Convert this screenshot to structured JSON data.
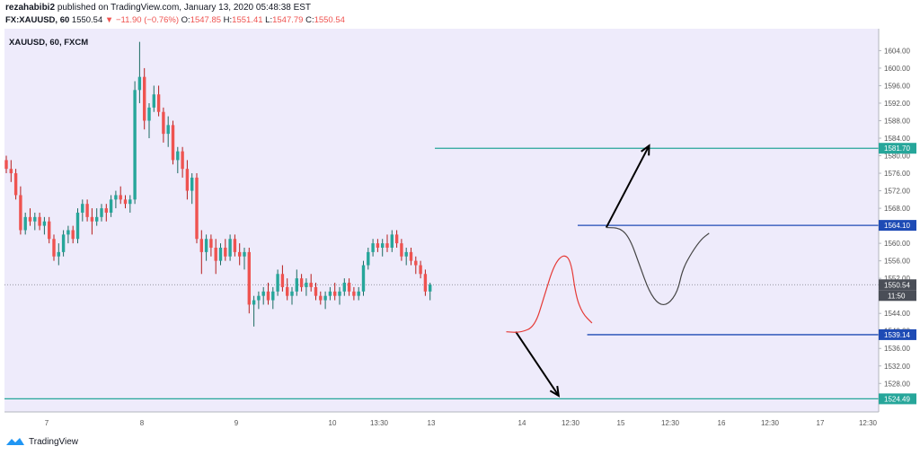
{
  "header": {
    "author": "rezahabibi2",
    "published": "published on TradingView.com, January 13, 2020 05:48:38 EST",
    "symbol": "FX:XAUUSD, 60",
    "last": "1550.54",
    "change": "−11.90 (−0.76%)",
    "o_label": "O:",
    "o_value": "1547.85",
    "h_label": "H:",
    "h_value": "1551.41",
    "l_label": "L:",
    "l_value": "1547.79",
    "c_label": "C:",
    "c_value": "1550.54"
  },
  "footer": {
    "brand": "TradingView"
  },
  "colors": {
    "background": "#eeebfb",
    "bull": "#26a69a",
    "bear": "#ef5350",
    "dark_bull": "#1c6b62",
    "dark_bear": "#b71c1c",
    "teal_line": "#26a69a",
    "blue_line": "#1e4bb5",
    "price_badge": "#4a4e57",
    "sketch_red": "#e53935",
    "sketch_gray": "#444444"
  },
  "chart_data": {
    "type": "candlestick",
    "title": "XAUUSD, 60, FXCM",
    "x_ticks": [
      "7",
      "8",
      "9",
      "10",
      "13:30",
      "13",
      "14",
      "12:30",
      "15",
      "12:30",
      "16",
      "12:30",
      "17",
      "12:30"
    ],
    "y_ticks": [
      "1604.00",
      "1600.00",
      "1596.00",
      "1592.00",
      "1588.00",
      "1584.00",
      "1580.00",
      "1576.00",
      "1572.00",
      "1568.00",
      "1564.00",
      "1560.00",
      "1556.00",
      "1552.00",
      "1548.00",
      "1544.00",
      "1540.00",
      "1536.00",
      "1532.00",
      "1528.00",
      "1524.00"
    ],
    "ylim": [
      1521.5,
      1609
    ],
    "horizontal_levels": [
      {
        "label": "1581.70",
        "value": 1581.7,
        "color": "teal",
        "start_bar": 90
      },
      {
        "label": "1564.10",
        "value": 1564.1,
        "color": "blue",
        "start_bar": 120
      },
      {
        "label": "1539.14",
        "value": 1539.14,
        "color": "blue",
        "start_bar": 122
      },
      {
        "label": "1524.49",
        "value": 1524.49,
        "color": "teal",
        "start_bar": 0
      }
    ],
    "last_price": {
      "label": "1550.54",
      "value": 1550.54
    },
    "countdown": "11:50",
    "candles": [
      [
        1579,
        1580,
        1576,
        1577
      ],
      [
        1577,
        1579,
        1574,
        1576
      ],
      [
        1576,
        1577,
        1570,
        1571
      ],
      [
        1571,
        1573,
        1562,
        1563
      ],
      [
        1563,
        1567,
        1562,
        1566
      ],
      [
        1566,
        1568,
        1564,
        1565
      ],
      [
        1565,
        1567,
        1563,
        1566
      ],
      [
        1566,
        1567,
        1563,
        1564
      ],
      [
        1564,
        1566,
        1562,
        1565
      ],
      [
        1565,
        1566,
        1560,
        1561
      ],
      [
        1561,
        1562,
        1556,
        1557
      ],
      [
        1557,
        1560,
        1555,
        1558
      ],
      [
        1558,
        1563,
        1557,
        1562
      ],
      [
        1562,
        1564,
        1560,
        1563
      ],
      [
        1563,
        1564,
        1560,
        1561
      ],
      [
        1561,
        1568,
        1560,
        1567
      ],
      [
        1567,
        1570,
        1565,
        1569
      ],
      [
        1569,
        1570,
        1565,
        1566
      ],
      [
        1566,
        1568,
        1562,
        1565
      ],
      [
        1565,
        1568,
        1564,
        1566
      ],
      [
        1566,
        1569,
        1565,
        1568
      ],
      [
        1568,
        1569,
        1565,
        1567
      ],
      [
        1567,
        1571,
        1566,
        1570
      ],
      [
        1570,
        1572,
        1568,
        1571
      ],
      [
        1571,
        1573,
        1569,
        1570
      ],
      [
        1570,
        1571,
        1568,
        1569
      ],
      [
        1569,
        1571,
        1567,
        1570
      ],
      [
        1570,
        1597,
        1569,
        1595
      ],
      [
        1595,
        1606,
        1592,
        1598
      ],
      [
        1598,
        1600,
        1586,
        1588
      ],
      [
        1588,
        1592,
        1584,
        1591
      ],
      [
        1591,
        1596,
        1590,
        1594
      ],
      [
        1594,
        1596,
        1589,
        1590
      ],
      [
        1590,
        1591,
        1583,
        1585
      ],
      [
        1585,
        1589,
        1582,
        1587
      ],
      [
        1587,
        1588,
        1578,
        1579
      ],
      [
        1579,
        1582,
        1576,
        1581
      ],
      [
        1581,
        1582,
        1575,
        1577
      ],
      [
        1577,
        1579,
        1570,
        1572
      ],
      [
        1572,
        1576,
        1569,
        1575
      ],
      [
        1575,
        1576,
        1560,
        1561
      ],
      [
        1561,
        1563,
        1553,
        1558
      ],
      [
        1558,
        1562,
        1556,
        1561
      ],
      [
        1561,
        1562,
        1557,
        1559
      ],
      [
        1559,
        1561,
        1553,
        1556
      ],
      [
        1556,
        1560,
        1555,
        1559
      ],
      [
        1559,
        1561,
        1556,
        1557
      ],
      [
        1557,
        1562,
        1556,
        1561
      ],
      [
        1561,
        1562,
        1557,
        1558
      ],
      [
        1558,
        1560,
        1555,
        1557
      ],
      [
        1557,
        1559,
        1554,
        1558
      ],
      [
        1558,
        1559,
        1544,
        1546
      ],
      [
        1546,
        1548,
        1541,
        1547
      ],
      [
        1547,
        1549,
        1545,
        1548
      ],
      [
        1548,
        1550,
        1546,
        1549
      ],
      [
        1549,
        1551,
        1546,
        1547
      ],
      [
        1547,
        1550,
        1545,
        1549
      ],
      [
        1549,
        1554,
        1548,
        1553
      ],
      [
        1553,
        1555,
        1549,
        1550
      ],
      [
        1550,
        1552,
        1547,
        1548
      ],
      [
        1548,
        1550,
        1546,
        1549
      ],
      [
        1549,
        1554,
        1548,
        1552
      ],
      [
        1552,
        1553,
        1549,
        1550
      ],
      [
        1550,
        1552,
        1548,
        1551
      ],
      [
        1551,
        1553,
        1549,
        1550
      ],
      [
        1550,
        1551,
        1547,
        1548
      ],
      [
        1548,
        1549,
        1546,
        1547
      ],
      [
        1547,
        1549,
        1545,
        1548
      ],
      [
        1548,
        1550,
        1547,
        1549
      ],
      [
        1549,
        1551,
        1547,
        1548
      ],
      [
        1548,
        1550,
        1546,
        1549
      ],
      [
        1549,
        1552,
        1548,
        1551
      ],
      [
        1551,
        1552,
        1548,
        1549
      ],
      [
        1549,
        1550,
        1547,
        1548
      ],
      [
        1548,
        1550,
        1547,
        1549
      ],
      [
        1549,
        1556,
        1548,
        1555
      ],
      [
        1555,
        1559,
        1554,
        1558
      ],
      [
        1558,
        1561,
        1557,
        1560
      ],
      [
        1560,
        1561,
        1558,
        1559
      ],
      [
        1559,
        1561,
        1557,
        1560
      ],
      [
        1560,
        1562,
        1558,
        1559
      ],
      [
        1559,
        1563,
        1558,
        1562
      ],
      [
        1562,
        1563,
        1559,
        1560
      ],
      [
        1560,
        1561,
        1556,
        1557
      ],
      [
        1557,
        1559,
        1555,
        1558
      ],
      [
        1558,
        1559,
        1555,
        1556
      ],
      [
        1556,
        1557,
        1553,
        1555
      ],
      [
        1555,
        1556,
        1552,
        1553
      ],
      [
        1553,
        1554,
        1548,
        1549
      ],
      [
        1549,
        1551,
        1547,
        1550.54
      ]
    ],
    "annotations": [
      {
        "type": "arrow",
        "from": [
          126,
          1563.6
        ],
        "to": [
          135,
          1582.3
        ]
      },
      {
        "type": "arrow",
        "from": [
          107,
          1539.8
        ],
        "to": [
          116,
          1525.2
        ]
      },
      {
        "type": "path",
        "color": "red",
        "points": [
          [
            105,
            1539.8
          ],
          [
            108,
            1539.6
          ],
          [
            111,
            1541
          ],
          [
            113,
            1548
          ],
          [
            115,
            1555
          ],
          [
            117,
            1557.6
          ],
          [
            118.6,
            1556
          ],
          [
            119.6,
            1548
          ],
          [
            121,
            1544
          ],
          [
            123,
            1541.8
          ]
        ]
      },
      {
        "type": "path",
        "color": "gray",
        "points": [
          [
            126,
            1563.6
          ],
          [
            129,
            1563.5
          ],
          [
            131,
            1561
          ],
          [
            133,
            1555
          ],
          [
            135,
            1549
          ],
          [
            137,
            1546
          ],
          [
            139,
            1546
          ],
          [
            141,
            1549
          ],
          [
            142,
            1554
          ],
          [
            144,
            1558
          ],
          [
            146,
            1561
          ],
          [
            147.6,
            1562.3
          ]
        ]
      }
    ]
  }
}
